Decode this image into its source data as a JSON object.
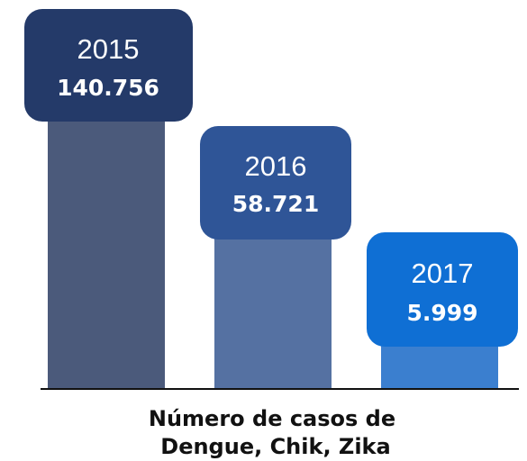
{
  "cards": [
    {
      "year": "2015",
      "value": "140.756"
    },
    {
      "year": "2016",
      "value": "58.721"
    },
    {
      "year": "2017",
      "value": "5.999"
    }
  ],
  "caption": {
    "line1": "Número de casos de",
    "line2": "Dengue, Chik, Zika"
  }
}
